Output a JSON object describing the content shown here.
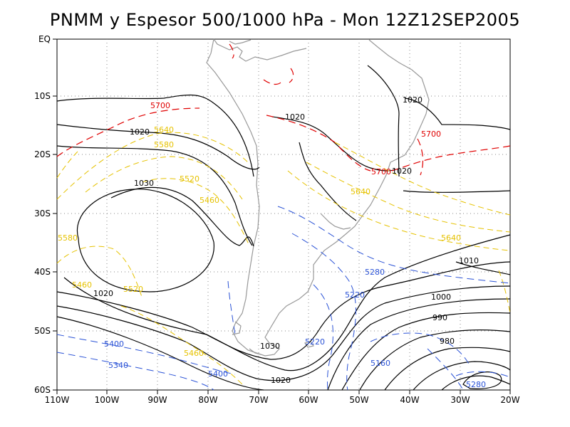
{
  "title": "PNMM y Espesor 500/1000 hPa - Mon 12Z12SEP2005",
  "colors": {
    "pressure": "#000000",
    "thickness_red": "#e00000",
    "thickness_yellow": "#e6c200",
    "thickness_blue": "#2a52d6",
    "coast": "#999999",
    "grid": "#888888"
  },
  "lat_labels": [
    "EQ",
    "10S",
    "20S",
    "30S",
    "40S",
    "50S",
    "60S"
  ],
  "lon_labels": [
    "110W",
    "100W",
    "90W",
    "80W",
    "70W",
    "60W",
    "50W",
    "40W",
    "30W",
    "20W"
  ],
  "contour_labels": {
    "pressure": [
      "1020",
      "1020",
      "1020",
      "1020",
      "1030",
      "1020",
      "1010",
      "1000",
      "990",
      "980",
      "1030",
      "1020"
    ],
    "thickness_red": [
      "5700",
      "5700",
      "5700"
    ],
    "thickness_yellow": [
      "5640",
      "5580",
      "5520",
      "5460",
      "5580",
      "5460",
      "5520",
      "5460",
      "5640",
      "5640"
    ],
    "thickness_blue": [
      "5280",
      "5220",
      "5400",
      "5340",
      "5400",
      "5160",
      "5280",
      "5220"
    ]
  }
}
